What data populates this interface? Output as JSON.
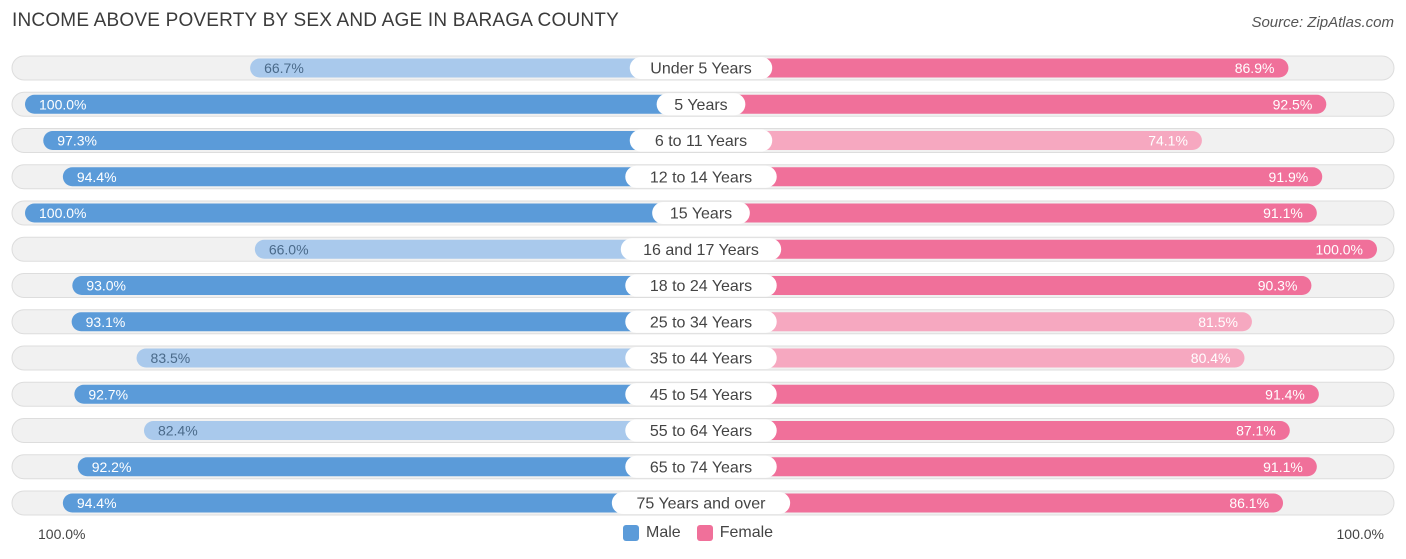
{
  "chart_data": {
    "type": "bar",
    "orientation": "horizontal-diverging",
    "title": "INCOME ABOVE POVERTY BY SEX AND AGE IN BARAGA COUNTY",
    "source": "Source: ZipAtlas.com",
    "categories": [
      "Under 5 Years",
      "5 Years",
      "6 to 11 Years",
      "12 to 14 Years",
      "15 Years",
      "16 and 17 Years",
      "18 to 24 Years",
      "25 to 34 Years",
      "35 to 44 Years",
      "45 to 54 Years",
      "55 to 64 Years",
      "65 to 74 Years",
      "75 Years and over"
    ],
    "series": [
      {
        "name": "Male",
        "values": [
          66.7,
          100.0,
          97.3,
          94.4,
          100.0,
          66.0,
          93.0,
          93.1,
          83.5,
          92.7,
          82.4,
          92.2,
          94.4
        ]
      },
      {
        "name": "Female",
        "values": [
          86.9,
          92.5,
          74.1,
          91.9,
          91.1,
          100.0,
          90.3,
          81.5,
          80.4,
          91.4,
          87.1,
          91.1,
          86.1
        ]
      }
    ],
    "value_labels": {
      "male": [
        "66.7%",
        "100.0%",
        "97.3%",
        "94.4%",
        "100.0%",
        "66.0%",
        "93.0%",
        "93.1%",
        "83.5%",
        "92.7%",
        "82.4%",
        "92.2%",
        "94.4%"
      ],
      "female": [
        "86.9%",
        "92.5%",
        "74.1%",
        "91.9%",
        "91.1%",
        "100.0%",
        "90.3%",
        "81.5%",
        "80.4%",
        "91.4%",
        "87.1%",
        "91.1%",
        "86.1%"
      ]
    },
    "xlim": [
      0,
      100
    ],
    "axis_left_label": "100.0%",
    "axis_right_label": "100.0%",
    "legend": [
      "Male",
      "Female"
    ],
    "legend_position": "bottom-center",
    "colors": {
      "male_strong": "#5b9bd9",
      "male_light": "#a9c9ec",
      "female_strong": "#f0709a",
      "female_light": "#f6a8c0",
      "row_background": "#f1f1f1",
      "row_border": "#dddddd"
    }
  }
}
